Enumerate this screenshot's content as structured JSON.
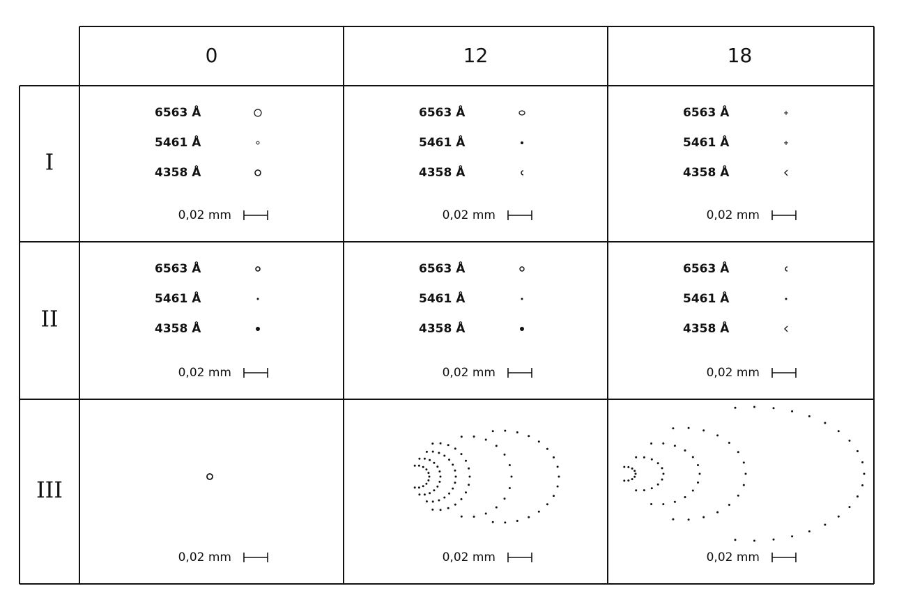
{
  "table": {
    "columns": [
      "0",
      "12",
      "18"
    ],
    "rows": [
      {
        "label": "I",
        "cells": [
          {
            "lines": [
              "6563 Å",
              "5461 Å",
              "4358 Å"
            ],
            "scale": "0,02 mm"
          },
          {
            "lines": [
              "6563 Å",
              "5461 Å",
              "4358 Å"
            ],
            "scale": "0,02 mm"
          },
          {
            "lines": [
              "6563 Å",
              "5461 Å",
              "4358 Å"
            ],
            "scale": "0,02 mm"
          }
        ]
      },
      {
        "label": "II",
        "cells": [
          {
            "lines": [
              "6563 Å",
              "5461 Å",
              "4358 Å"
            ],
            "scale": "0,02 mm"
          },
          {
            "lines": [
              "6563 Å",
              "5461 Å",
              "4358 Å"
            ],
            "scale": "0,02 mm"
          },
          {
            "lines": [
              "6563 Å",
              "5461 Å",
              "4358 Å"
            ],
            "scale": "0,02 mm"
          }
        ]
      },
      {
        "label": "III",
        "cells": [
          {
            "scale": "0,02 mm"
          },
          {
            "scale": "0,02 mm"
          },
          {
            "scale": "0,02 mm"
          }
        ]
      }
    ]
  }
}
